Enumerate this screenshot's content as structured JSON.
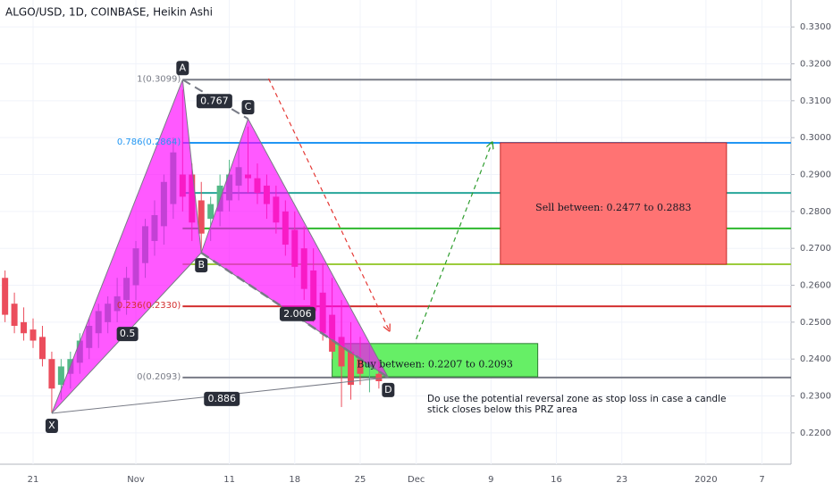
{
  "chart_data": {
    "type": "candlestick",
    "title": "ALGO/USD, 1D, COINBASE, Heikin Ashi",
    "up_color": "#53b987",
    "down_color": "#eb4d5c",
    "xlim": [
      -3.54,
      81.1
    ],
    "ylim": [
      0.2115,
      0.3373
    ],
    "xticks": [
      {
        "value": 0,
        "label": "21"
      },
      {
        "value": 11,
        "label": "Nov"
      },
      {
        "value": 21,
        "label": "11"
      },
      {
        "value": 28,
        "label": "18"
      },
      {
        "value": 35,
        "label": "25"
      },
      {
        "value": 41,
        "label": "Dec"
      },
      {
        "value": 49,
        "label": "9"
      },
      {
        "value": 56,
        "label": "16"
      },
      {
        "value": 63,
        "label": "23"
      },
      {
        "value": 72,
        "label": "2020"
      },
      {
        "value": 78,
        "label": "7"
      }
    ],
    "yticks": [
      {
        "value": 0.33,
        "label": "0.3300"
      },
      {
        "value": 0.32,
        "label": "0.3200"
      },
      {
        "value": 0.31,
        "label": "0.3100"
      },
      {
        "value": 0.3,
        "label": "0.3000"
      },
      {
        "value": 0.29,
        "label": "0.2900"
      },
      {
        "value": 0.28,
        "label": "0.2800"
      },
      {
        "value": 0.27,
        "label": "0.2700"
      },
      {
        "value": 0.26,
        "label": "0.2600"
      },
      {
        "value": 0.25,
        "label": "0.2500"
      },
      {
        "value": 0.24,
        "label": "0.2400"
      },
      {
        "value": 0.23,
        "label": "0.2300"
      },
      {
        "value": 0.22,
        "label": "0.2200"
      }
    ],
    "grid": true,
    "x": [
      -3,
      -2,
      -1,
      0,
      1,
      2,
      3,
      4,
      5,
      6,
      7,
      8,
      9,
      10,
      11,
      12,
      13,
      14,
      15,
      16,
      17,
      18,
      19,
      20,
      21,
      22,
      23,
      24,
      25,
      26,
      27,
      28,
      29,
      30,
      31,
      32,
      33,
      34,
      35,
      36,
      37
    ],
    "open": [
      0.262,
      0.255,
      0.25,
      0.248,
      0.246,
      0.24,
      0.233,
      0.236,
      0.239,
      0.243,
      0.247,
      0.25,
      0.253,
      0.256,
      0.26,
      0.266,
      0.272,
      0.276,
      0.282,
      0.29,
      0.29,
      0.283,
      0.278,
      0.28,
      0.283,
      0.287,
      0.29,
      0.289,
      0.287,
      0.284,
      0.28,
      0.275,
      0.27,
      0.264,
      0.258,
      0.252,
      0.246,
      0.242,
      0.24,
      0.238,
      0.236
    ],
    "high": [
      0.264,
      0.258,
      0.254,
      0.251,
      0.249,
      0.242,
      0.24,
      0.242,
      0.247,
      0.251,
      0.255,
      0.257,
      0.262,
      0.265,
      0.272,
      0.278,
      0.283,
      0.29,
      0.3,
      0.313,
      0.293,
      0.288,
      0.284,
      0.29,
      0.294,
      0.298,
      0.303,
      0.293,
      0.29,
      0.287,
      0.283,
      0.28,
      0.276,
      0.27,
      0.266,
      0.262,
      0.256,
      0.25,
      0.246,
      0.244,
      0.24
    ],
    "low": [
      0.25,
      0.247,
      0.245,
      0.243,
      0.238,
      0.2255,
      0.229,
      0.232,
      0.236,
      0.24,
      0.243,
      0.247,
      0.25,
      0.252,
      0.256,
      0.262,
      0.268,
      0.271,
      0.278,
      0.28,
      0.272,
      0.269,
      0.272,
      0.276,
      0.28,
      0.283,
      0.285,
      0.282,
      0.278,
      0.274,
      0.268,
      0.262,
      0.256,
      0.25,
      0.245,
      0.24,
      0.227,
      0.229,
      0.233,
      0.231,
      0.232
    ],
    "close": [
      0.252,
      0.249,
      0.247,
      0.245,
      0.24,
      0.232,
      0.238,
      0.24,
      0.245,
      0.249,
      0.253,
      0.255,
      0.257,
      0.262,
      0.27,
      0.276,
      0.279,
      0.288,
      0.296,
      0.284,
      0.277,
      0.274,
      0.282,
      0.287,
      0.29,
      0.292,
      0.289,
      0.285,
      0.282,
      0.277,
      0.271,
      0.265,
      0.259,
      0.253,
      0.247,
      0.242,
      0.238,
      0.233,
      0.236,
      0.239,
      0.234
    ],
    "levels_start": 16,
    "levels": [
      {
        "y": 0.3157,
        "color": "#787b86",
        "label": "1(0.3099)"
      },
      {
        "y": 0.2986,
        "color": "#2196f3",
        "label": "0.786(0.2864)"
      },
      {
        "y": 0.285,
        "color": "#26a69a"
      },
      {
        "y": 0.2754,
        "color": "#2eb82e"
      },
      {
        "y": 0.2657,
        "color": "#9ccc3c"
      },
      {
        "y": 0.2543,
        "color": "#d32f2f",
        "label": "0.236(0.2330)"
      },
      {
        "y": 0.235,
        "color": "#787b86",
        "label": "0(0.2093)"
      }
    ],
    "points": [
      {
        "label": "X",
        "x": 2,
        "y": 0.2253
      },
      {
        "label": "A",
        "x": 16,
        "y": 0.3157
      },
      {
        "label": "B",
        "x": 18,
        "y": 0.2688
      },
      {
        "label": "C",
        "x": 23,
        "y": 0.3051
      },
      {
        "label": "D",
        "x": 38,
        "y": 0.235
      }
    ],
    "ratios": [
      {
        "label": "0.767",
        "x": 19.4,
        "y": 0.3099
      },
      {
        "label": "0.5",
        "x": 10.1,
        "y": 0.2468
      },
      {
        "label": "2.006",
        "x": 28.3,
        "y": 0.2522
      },
      {
        "label": "0.886",
        "x": 20.2,
        "y": 0.2292
      }
    ],
    "boxes": [
      {
        "text": "Sell between: 0.2477 to 0.2883",
        "x1": 50,
        "x2": 74.2,
        "y1": 0.2986,
        "y2": 0.2657,
        "color": "#ff7373",
        "border": "#c62828"
      },
      {
        "text": "Buy between: 0.2207 to 0.2093",
        "x1": 32,
        "x2": 54,
        "y1": 0.2442,
        "y2": 0.2352,
        "color": "#66ef66",
        "border": "#2e7d32"
      }
    ],
    "arrows": [
      {
        "x1": 25.2,
        "y1": 0.316,
        "x2": 38.1,
        "y2": 0.2478,
        "color": "#e53935"
      },
      {
        "x1": 41,
        "y1": 0.2454,
        "x2": 49.1,
        "y2": 0.2986,
        "color": "#2e9d2e"
      }
    ],
    "note": [
      "Do use the potential reversal zone as stop loss in case a candle",
      "stick closes below this PRZ area"
    ]
  }
}
